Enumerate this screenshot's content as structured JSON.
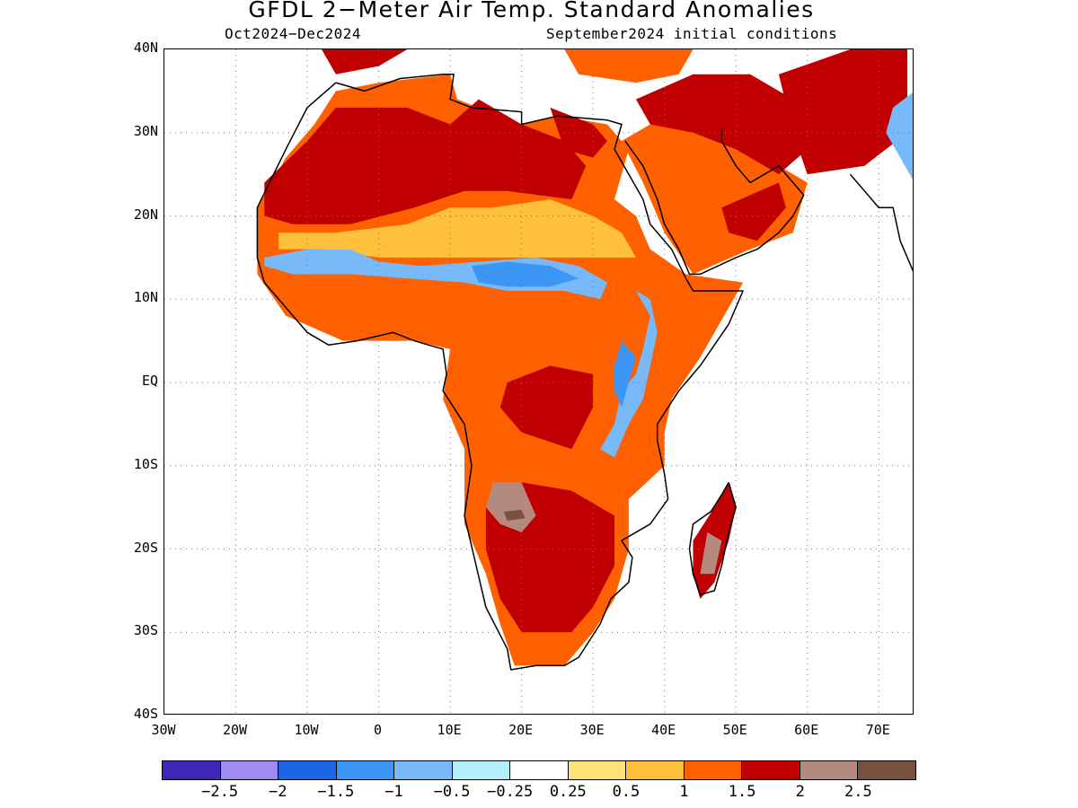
{
  "title": "GFDL 2−Meter Air Temp. Standard Anomalies",
  "period": "Oct2024−Dec2024",
  "init": "September2024 initial conditions",
  "map": {
    "lon_range": [
      -30,
      75
    ],
    "lat_range": [
      -40,
      40
    ],
    "y_ticks": [
      {
        "label": "40N",
        "lat": 40
      },
      {
        "label": "30N",
        "lat": 30
      },
      {
        "label": "20N",
        "lat": 20
      },
      {
        "label": "10N",
        "lat": 10
      },
      {
        "label": "EQ",
        "lat": 0
      },
      {
        "label": "10S",
        "lat": -10
      },
      {
        "label": "20S",
        "lat": -20
      },
      {
        "label": "30S",
        "lat": -30
      },
      {
        "label": "40S",
        "lat": -40
      }
    ],
    "x_ticks": [
      {
        "label": "30W",
        "lon": -30
      },
      {
        "label": "20W",
        "lon": -20
      },
      {
        "label": "10W",
        "lon": -10
      },
      {
        "label": "0",
        "lon": 0
      },
      {
        "label": "10E",
        "lon": 10
      },
      {
        "label": "20E",
        "lon": 20
      },
      {
        "label": "30E",
        "lon": 30
      },
      {
        "label": "40E",
        "lon": 40
      },
      {
        "label": "50E",
        "lon": 50
      },
      {
        "label": "60E",
        "lon": 60
      },
      {
        "label": "70E",
        "lon": 70
      }
    ],
    "grid": "dotted"
  },
  "legend": {
    "colors": [
      "#3c28b4",
      "#a08cf0",
      "#1e64e6",
      "#3c96f5",
      "#78b9fa",
      "#b4f0fa",
      "#ffffff",
      "#ffe178",
      "#ffc03c",
      "#ff6000",
      "#c00000",
      "#b48a80",
      "#7a5040"
    ],
    "labels": [
      "−2.5",
      "−2",
      "−1.5",
      "−1",
      "−0.5",
      "−0.25",
      "0.25",
      "0.5",
      "1",
      "1.5",
      "2",
      "2.5"
    ]
  },
  "regions": [
    {
      "name": "north-africa-warm",
      "color": "#ff6000",
      "lonlat": [
        [
          -17,
          21
        ],
        [
          -13,
          27
        ],
        [
          -9,
          31
        ],
        [
          -6,
          35
        ],
        [
          0,
          36
        ],
        [
          10,
          37
        ],
        [
          11,
          34
        ],
        [
          20,
          31
        ],
        [
          25,
          32
        ],
        [
          32,
          31
        ],
        [
          35,
          28
        ],
        [
          33,
          22
        ],
        [
          36,
          20
        ],
        [
          38,
          16
        ],
        [
          43,
          13
        ],
        [
          51,
          12
        ],
        [
          45,
          3
        ],
        [
          41,
          -2
        ],
        [
          40,
          -6
        ],
        [
          40,
          -10
        ],
        [
          35,
          -14
        ],
        [
          35,
          -20
        ],
        [
          33,
          -26
        ],
        [
          30,
          -30
        ],
        [
          26,
          -34
        ],
        [
          19,
          -34
        ],
        [
          17,
          -29
        ],
        [
          15,
          -23
        ],
        [
          12,
          -17
        ],
        [
          12,
          -8
        ],
        [
          9,
          -2
        ],
        [
          10,
          4
        ],
        [
          5,
          5
        ],
        [
          -5,
          5
        ],
        [
          -13,
          8
        ],
        [
          -17,
          13
        ],
        [
          -17,
          21
        ]
      ]
    },
    {
      "name": "sahara-hot",
      "color": "#c00000",
      "lonlat": [
        [
          -16,
          24
        ],
        [
          -10,
          29
        ],
        [
          -6,
          33
        ],
        [
          4,
          33
        ],
        [
          10,
          31
        ],
        [
          14,
          34
        ],
        [
          20,
          31
        ],
        [
          26,
          29
        ],
        [
          29,
          26
        ],
        [
          27,
          22
        ],
        [
          18,
          23
        ],
        [
          12,
          23
        ],
        [
          5,
          21
        ],
        [
          -4,
          19
        ],
        [
          -12,
          19
        ],
        [
          -16,
          20
        ]
      ]
    },
    {
      "name": "sahara-hot-east",
      "color": "#c00000",
      "lonlat": [
        [
          24,
          33
        ],
        [
          30,
          31
        ],
        [
          32,
          29
        ],
        [
          30,
          27
        ],
        [
          26,
          28
        ]
      ]
    },
    {
      "name": "sahara-yellow",
      "color": "#ffc03c",
      "lonlat": [
        [
          -14,
          18
        ],
        [
          -6,
          18
        ],
        [
          4,
          19
        ],
        [
          10,
          21
        ],
        [
          16,
          21
        ],
        [
          24,
          22
        ],
        [
          30,
          20
        ],
        [
          34,
          18
        ],
        [
          36,
          15
        ],
        [
          30,
          15
        ],
        [
          20,
          15
        ],
        [
          10,
          15
        ],
        [
          0,
          15
        ],
        [
          -8,
          16
        ],
        [
          -14,
          16
        ]
      ]
    },
    {
      "name": "sahel-cool",
      "color": "#78b9fa",
      "lonlat": [
        [
          -16,
          15
        ],
        [
          -10,
          16
        ],
        [
          -4,
          16
        ],
        [
          0,
          14.5
        ],
        [
          6,
          14
        ],
        [
          14,
          14.5
        ],
        [
          22,
          15
        ],
        [
          28,
          14
        ],
        [
          32,
          12
        ],
        [
          31,
          10
        ],
        [
          26,
          11
        ],
        [
          18,
          11
        ],
        [
          12,
          12
        ],
        [
          4,
          12.5
        ],
        [
          -4,
          13
        ],
        [
          -12,
          13
        ],
        [
          -16,
          14
        ]
      ]
    },
    {
      "name": "sahel-cool-center",
      "color": "#3c96f5",
      "lonlat": [
        [
          13,
          14
        ],
        [
          18,
          14.5
        ],
        [
          24,
          14
        ],
        [
          28,
          12.5
        ],
        [
          24,
          11.5
        ],
        [
          18,
          11.5
        ],
        [
          14,
          12
        ]
      ]
    },
    {
      "name": "east-africa-cool",
      "color": "#78b9fa",
      "lonlat": [
        [
          36,
          11
        ],
        [
          38,
          8
        ],
        [
          37,
          4
        ],
        [
          36,
          1
        ],
        [
          34,
          -1
        ],
        [
          33,
          -5
        ],
        [
          31,
          -8
        ],
        [
          33,
          -9
        ],
        [
          35,
          -5
        ],
        [
          37,
          -2
        ],
        [
          38,
          2
        ],
        [
          39,
          6
        ],
        [
          38,
          10
        ]
      ]
    },
    {
      "name": "east-africa-cool-core",
      "color": "#3c96f5",
      "lonlat": [
        [
          34,
          5
        ],
        [
          36,
          3
        ],
        [
          35,
          0
        ],
        [
          34,
          -3
        ],
        [
          33,
          -1
        ],
        [
          33,
          2
        ]
      ]
    },
    {
      "name": "central-africa-hot",
      "color": "#c00000",
      "lonlat": [
        [
          18,
          0
        ],
        [
          24,
          2
        ],
        [
          30,
          1
        ],
        [
          30,
          -3
        ],
        [
          27,
          -8
        ],
        [
          20,
          -6
        ],
        [
          17,
          -3
        ]
      ]
    },
    {
      "name": "southern-africa-hot",
      "color": "#c00000",
      "lonlat": [
        [
          15,
          -15
        ],
        [
          20,
          -12
        ],
        [
          27,
          -13
        ],
        [
          33,
          -16
        ],
        [
          33,
          -22
        ],
        [
          30,
          -27
        ],
        [
          27,
          -30
        ],
        [
          20,
          -30
        ],
        [
          17,
          -26
        ],
        [
          15,
          -20
        ]
      ]
    },
    {
      "name": "angola-brown",
      "color": "#b48a80",
      "lonlat": [
        [
          16,
          -12
        ],
        [
          20,
          -12
        ],
        [
          22,
          -16
        ],
        [
          20,
          -18
        ],
        [
          17,
          -17
        ],
        [
          15,
          -15
        ]
      ]
    },
    {
      "name": "angola-dark",
      "color": "#7a5040",
      "lonlat": [
        [
          17.5,
          -15.5
        ],
        [
          20,
          -15.3
        ],
        [
          20.5,
          -16.3
        ],
        [
          18,
          -16.6
        ]
      ]
    },
    {
      "name": "arabia-warm",
      "color": "#ff6000",
      "lonlat": [
        [
          34,
          29
        ],
        [
          38,
          31
        ],
        [
          44,
          33
        ],
        [
          50,
          30
        ],
        [
          56,
          26
        ],
        [
          60,
          24
        ],
        [
          58,
          18
        ],
        [
          52,
          16
        ],
        [
          44,
          13
        ],
        [
          40,
          18
        ],
        [
          37,
          24
        ]
      ]
    },
    {
      "name": "arabia-hot",
      "color": "#c00000",
      "lonlat": [
        [
          36,
          34
        ],
        [
          44,
          37
        ],
        [
          52,
          37
        ],
        [
          58,
          34
        ],
        [
          60,
          28
        ],
        [
          56,
          25
        ],
        [
          50,
          28
        ],
        [
          44,
          30
        ],
        [
          38,
          31
        ]
      ]
    },
    {
      "name": "arabia-hot-south",
      "color": "#c00000",
      "lonlat": [
        [
          48,
          21
        ],
        [
          56,
          24
        ],
        [
          57,
          21
        ],
        [
          53,
          17
        ],
        [
          49,
          18
        ]
      ]
    },
    {
      "name": "iran-hot",
      "color": "#c00000",
      "lonlat": [
        [
          56,
          37
        ],
        [
          66,
          40
        ],
        [
          74,
          40
        ],
        [
          74,
          30
        ],
        [
          68,
          26
        ],
        [
          60,
          25
        ],
        [
          58,
          30
        ]
      ]
    },
    {
      "name": "india-cool",
      "color": "#78b9fa",
      "lonlat": [
        [
          72,
          33
        ],
        [
          75,
          35
        ],
        [
          75,
          24
        ],
        [
          73,
          27
        ],
        [
          71,
          30
        ]
      ]
    },
    {
      "name": "mediterranean-north",
      "color": "#c00000",
      "lonlat": [
        [
          -8,
          40
        ],
        [
          4,
          40
        ],
        [
          0,
          38
        ],
        [
          -6,
          37
        ]
      ]
    },
    {
      "name": "turkey-hot",
      "color": "#ff6000",
      "lonlat": [
        [
          26,
          40
        ],
        [
          44,
          40
        ],
        [
          42,
          37
        ],
        [
          36,
          36
        ],
        [
          28,
          37
        ]
      ]
    },
    {
      "name": "madagascar-hot",
      "color": "#c00000",
      "lonlat": [
        [
          49,
          -12
        ],
        [
          50,
          -15
        ],
        [
          49,
          -19
        ],
        [
          47,
          -24
        ],
        [
          45,
          -26
        ],
        [
          44,
          -23
        ],
        [
          44,
          -19
        ],
        [
          47,
          -15
        ]
      ]
    },
    {
      "name": "madagascar-brown",
      "color": "#b48a80",
      "lonlat": [
        [
          46,
          -18
        ],
        [
          48,
          -19
        ],
        [
          47,
          -23
        ],
        [
          45,
          -23
        ]
      ]
    }
  ],
  "coastlines": [
    {
      "name": "africa-coast",
      "lonlat": [
        [
          -6,
          36
        ],
        [
          -10,
          33
        ],
        [
          -13,
          28
        ],
        [
          -17,
          21
        ],
        [
          -17,
          15
        ],
        [
          -16,
          12
        ],
        [
          -13,
          9
        ],
        [
          -10,
          6
        ],
        [
          -7,
          4.5
        ],
        [
          -3,
          5
        ],
        [
          2,
          6
        ],
        [
          5,
          5
        ],
        [
          7,
          4.5
        ],
        [
          9,
          4
        ],
        [
          9.5,
          1
        ],
        [
          9,
          -1
        ],
        [
          12,
          -5
        ],
        [
          13,
          -10
        ],
        [
          12,
          -16
        ],
        [
          15,
          -27
        ],
        [
          18,
          -32
        ],
        [
          18.5,
          -34.5
        ],
        [
          22,
          -34
        ],
        [
          26,
          -34
        ],
        [
          28,
          -33
        ],
        [
          31,
          -29
        ],
        [
          32.5,
          -26
        ],
        [
          35,
          -24
        ],
        [
          35.5,
          -21
        ],
        [
          34,
          -19
        ],
        [
          38,
          -17
        ],
        [
          40.5,
          -14
        ],
        [
          40,
          -11
        ],
        [
          39,
          -7
        ],
        [
          39,
          -5
        ],
        [
          42,
          -1
        ],
        [
          45,
          2
        ],
        [
          49,
          7
        ],
        [
          51,
          11
        ],
        [
          44,
          11
        ],
        [
          43,
          12.5
        ],
        [
          41,
          16
        ],
        [
          38,
          19
        ],
        [
          37,
          22
        ],
        [
          35,
          25
        ],
        [
          33,
          28
        ],
        [
          34,
          31
        ],
        [
          32,
          31.5
        ],
        [
          25,
          32
        ],
        [
          20,
          31
        ],
        [
          20,
          32.5
        ],
        [
          13,
          33
        ],
        [
          10,
          34
        ],
        [
          10.5,
          37
        ],
        [
          9,
          37
        ],
        [
          3,
          36.5
        ],
        [
          -2,
          35
        ],
        [
          -6,
          36
        ]
      ]
    },
    {
      "name": "arabia-coast",
      "lonlat": [
        [
          34.5,
          29
        ],
        [
          37,
          26
        ],
        [
          39,
          22
        ],
        [
          40,
          19
        ],
        [
          42,
          16
        ],
        [
          43.5,
          13
        ],
        [
          45,
          13
        ],
        [
          50,
          15
        ],
        [
          53,
          16
        ],
        [
          56,
          18
        ],
        [
          58,
          20
        ],
        [
          59.5,
          22.5
        ],
        [
          56,
          26
        ],
        [
          52,
          24
        ],
        [
          50,
          26
        ],
        [
          48,
          29
        ],
        [
          48,
          30.5
        ]
      ]
    },
    {
      "name": "madagascar-coast",
      "lonlat": [
        [
          49,
          -12
        ],
        [
          50,
          -15
        ],
        [
          49,
          -18
        ],
        [
          48,
          -22
        ],
        [
          47,
          -25
        ],
        [
          45,
          -25.5
        ],
        [
          44,
          -23
        ],
        [
          43.5,
          -20
        ],
        [
          44,
          -17
        ],
        [
          46.5,
          -15.5
        ],
        [
          48,
          -13.5
        ],
        [
          49,
          -12
        ]
      ]
    },
    {
      "name": "india-coast",
      "lonlat": [
        [
          66,
          25
        ],
        [
          68,
          23
        ],
        [
          70,
          21
        ],
        [
          72,
          21
        ],
        [
          73,
          17
        ],
        [
          74.5,
          14
        ],
        [
          75,
          13
        ]
      ]
    }
  ]
}
